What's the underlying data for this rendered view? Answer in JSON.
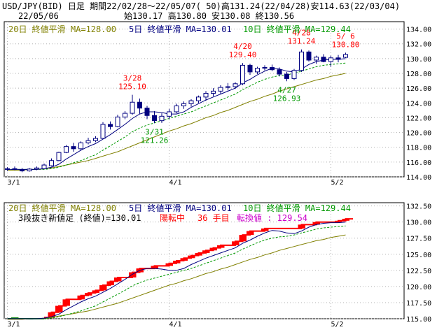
{
  "header": {
    "line1": "USD/JPY(BID) 日足 期間22/02/28～22/05/07( 50)高131.24(22/04/28)安114.63(22/03/04)",
    "date": "22/05/06",
    "ohlc": "始130.17 高130.80 安130.08 終130.56"
  },
  "colors": {
    "up_candle_fill": "#ffffff",
    "down_candle_fill": "#000080",
    "candle_outline": "#000080",
    "ma20": "#808000",
    "ma5": "#000080",
    "ma10": "#009900",
    "kagi_up": "#ff0000",
    "kagi_down": "#008000",
    "grid": "#b0b0b0",
    "annotation_red": "#ff0000",
    "annotation_green": "#009900"
  },
  "chart_data": [
    {
      "type": "candlestick",
      "panel": "upper",
      "legend": [
        {
          "label": "20日 終値平滑 MA=128.00",
          "color": "#808000"
        },
        {
          "label": "5日 終値平滑 MA=130.01",
          "color": "#000080"
        },
        {
          "label": "10日 終値平滑 MA=129.44",
          "color": "#009900"
        }
      ],
      "ylim": [
        114,
        135
      ],
      "y_ticks": [
        114,
        116,
        118,
        120,
        122,
        124,
        126,
        128,
        130,
        132,
        134
      ],
      "y_tick_labels": [
        "114.00",
        "116.00",
        "118.00",
        "120.00",
        "122.00",
        "124.00",
        "126.00",
        "128.00",
        "130.00",
        "132.00",
        "134.00"
      ],
      "x_ticks": [
        {
          "index": 0,
          "label": "3/1"
        },
        {
          "index": 22,
          "label": "4/1"
        },
        {
          "index": 44,
          "label": "5/2"
        }
      ],
      "grid": true,
      "candles": [
        [
          115.0,
          115.3,
          114.8,
          115.1
        ],
        [
          115.1,
          115.4,
          114.9,
          115.0
        ],
        [
          115.0,
          115.2,
          114.63,
          114.8
        ],
        [
          114.8,
          115.2,
          114.7,
          115.05
        ],
        [
          115.05,
          115.4,
          114.9,
          115.2
        ],
        [
          115.1,
          115.8,
          115.0,
          115.6
        ],
        [
          115.5,
          116.5,
          115.4,
          116.2
        ],
        [
          116.2,
          117.4,
          116.1,
          117.3
        ],
        [
          117.3,
          118.3,
          117.2,
          118.1
        ],
        [
          118.1,
          118.6,
          117.4,
          117.8
        ],
        [
          117.8,
          118.8,
          117.6,
          118.6
        ],
        [
          118.6,
          119.3,
          118.4,
          118.9
        ],
        [
          118.9,
          119.5,
          118.7,
          119.2
        ],
        [
          119.2,
          121.4,
          119.1,
          121.1
        ],
        [
          121.1,
          121.5,
          120.4,
          120.8
        ],
        [
          120.8,
          122.4,
          120.7,
          122.1
        ],
        [
          122.1,
          122.9,
          121.8,
          122.6
        ],
        [
          122.6,
          125.1,
          122.4,
          124.1
        ],
        [
          124.1,
          124.6,
          122.5,
          123.3
        ],
        [
          123.3,
          123.6,
          121.8,
          122.3
        ],
        [
          122.3,
          122.9,
          121.26,
          121.6
        ],
        [
          121.6,
          122.6,
          121.3,
          122.2
        ],
        [
          122.2,
          123.2,
          121.8,
          122.8
        ],
        [
          122.8,
          123.9,
          122.6,
          123.6
        ],
        [
          123.6,
          124.2,
          123.2,
          123.9
        ],
        [
          123.9,
          124.5,
          123.5,
          124.3
        ],
        [
          124.3,
          125.0,
          124.0,
          124.8
        ],
        [
          124.8,
          125.6,
          124.3,
          125.3
        ],
        [
          125.3,
          126.0,
          124.9,
          125.6
        ],
        [
          125.6,
          126.4,
          125.2,
          126.1
        ],
        [
          126.1,
          126.7,
          125.7,
          126.2
        ],
        [
          126.2,
          126.8,
          125.9,
          126.6
        ],
        [
          126.6,
          129.4,
          126.4,
          129.1
        ],
        [
          129.1,
          129.3,
          127.8,
          128.2
        ],
        [
          128.2,
          128.9,
          127.9,
          128.7
        ],
        [
          128.7,
          129.1,
          128.4,
          128.8
        ],
        [
          128.8,
          129.2,
          128.3,
          128.5
        ],
        [
          128.5,
          128.8,
          127.6,
          127.9
        ],
        [
          127.9,
          128.2,
          126.93,
          127.3
        ],
        [
          127.3,
          128.6,
          127.1,
          128.4
        ],
        [
          128.4,
          131.24,
          128.2,
          130.9
        ],
        [
          130.9,
          131.1,
          129.6,
          129.8
        ],
        [
          129.8,
          130.4,
          129.3,
          130.2
        ],
        [
          130.2,
          130.6,
          129.5,
          129.6
        ],
        [
          129.6,
          130.4,
          128.9,
          130.1
        ],
        [
          130.1,
          130.5,
          129.5,
          129.9
        ],
        [
          130.17,
          130.8,
          130.08,
          130.56
        ]
      ],
      "candle_fields": [
        "open",
        "high",
        "low",
        "close"
      ],
      "ma20": [
        114.9,
        114.9,
        114.9,
        115.0,
        115.0,
        115.1,
        115.2,
        115.4,
        115.6,
        115.8,
        116.0,
        116.2,
        116.5,
        116.8,
        117.1,
        117.4,
        117.8,
        118.2,
        118.6,
        119.0,
        119.4,
        119.8,
        120.2,
        120.5,
        120.9,
        121.2,
        121.6,
        122.0,
        122.3,
        122.7,
        123.0,
        123.4,
        123.8,
        124.2,
        124.5,
        124.9,
        125.2,
        125.6,
        125.9,
        126.2,
        126.5,
        126.8,
        127.1,
        127.3,
        127.6,
        127.8,
        128.0
      ],
      "ma5": [
        115.0,
        115.0,
        115.0,
        115.0,
        115.0,
        115.1,
        115.3,
        115.7,
        116.4,
        117.0,
        117.6,
        118.1,
        118.5,
        119.1,
        119.7,
        120.4,
        121.1,
        121.9,
        122.5,
        122.8,
        122.8,
        122.7,
        122.5,
        122.5,
        122.8,
        123.4,
        123.9,
        124.4,
        124.8,
        125.2,
        125.6,
        126.0,
        126.7,
        127.2,
        127.8,
        128.3,
        128.7,
        128.6,
        128.3,
        128.2,
        128.6,
        129.2,
        129.6,
        129.8,
        129.9,
        129.9,
        130.0
      ],
      "ma10": [
        115.0,
        115.0,
        115.0,
        115.0,
        115.0,
        115.0,
        115.1,
        115.3,
        115.6,
        115.9,
        116.2,
        116.6,
        117.0,
        117.6,
        118.2,
        118.8,
        119.4,
        120.1,
        120.6,
        121.0,
        121.3,
        121.6,
        121.9,
        122.2,
        122.5,
        122.8,
        123.2,
        123.6,
        124.0,
        124.4,
        124.8,
        125.2,
        125.8,
        126.3,
        126.8,
        127.2,
        127.5,
        127.7,
        127.8,
        128.0,
        128.3,
        128.6,
        128.9,
        129.1,
        129.2,
        129.3,
        129.4
      ],
      "annotations": [
        {
          "date": "3/28",
          "value": "125.10",
          "index": 17,
          "price": 125.1,
          "kind": "high"
        },
        {
          "date": "3/31",
          "value": "121.26",
          "index": 20,
          "price": 121.26,
          "kind": "low"
        },
        {
          "date": "4/20",
          "value": "129.40",
          "index": 32,
          "price": 129.4,
          "kind": "high"
        },
        {
          "date": "4/27",
          "value": "126.93",
          "index": 38,
          "price": 126.93,
          "kind": "low"
        },
        {
          "date": "4/28",
          "value": "131.24",
          "index": 40,
          "price": 131.24,
          "kind": "high"
        },
        {
          "date": "5/ 6",
          "value": "130.80",
          "index": 46,
          "price": 130.8,
          "kind": "high"
        }
      ]
    },
    {
      "type": "kagi",
      "panel": "lower",
      "legend": [
        {
          "label": "20日 終値平滑 MA=128.00",
          "color": "#808000"
        },
        {
          "label": "5日 終値平滑 MA=130.01",
          "color": "#000080"
        },
        {
          "label": "10日 終値平滑 MA=129.44",
          "color": "#009900"
        }
      ],
      "status": [
        {
          "label": "3段抜き新値足 (終値)=130.01",
          "color": "#000000"
        },
        {
          "label": "陽転中",
          "color": "#ff0000"
        },
        {
          "label": "36 手目",
          "color": "#ff0000"
        },
        {
          "label": "転換値 : 129.54",
          "color": "#cc00cc"
        }
      ],
      "ylim": [
        115,
        133
      ],
      "y_ticks": [
        115,
        117.5,
        120,
        122.5,
        125,
        127.5,
        130,
        132.5
      ],
      "y_tick_labels": [
        "115.00",
        "117.50",
        "120.00",
        "122.50",
        "125.00",
        "127.50",
        "130.00",
        "132.50"
      ],
      "x_ticks": [
        {
          "index": 0,
          "label": "3/1"
        },
        {
          "index": 22,
          "label": "4/1"
        },
        {
          "index": 44,
          "label": "5/2"
        }
      ],
      "grid": true,
      "bricks": [
        {
          "index": 1,
          "from": 115.0,
          "to": 115.2,
          "dir": "down"
        },
        {
          "index": 3,
          "from": 115.0,
          "to": 115.1,
          "dir": "down"
        },
        {
          "index": 6,
          "from": 115.2,
          "to": 116.0,
          "dir": "up"
        },
        {
          "index": 7,
          "from": 116.0,
          "to": 117.0,
          "dir": "up"
        },
        {
          "index": 8,
          "from": 117.0,
          "to": 118.0,
          "dir": "up"
        },
        {
          "index": 10,
          "from": 118.0,
          "to": 118.6,
          "dir": "up"
        },
        {
          "index": 11,
          "from": 118.6,
          "to": 119.0,
          "dir": "up"
        },
        {
          "index": 12,
          "from": 119.0,
          "to": 119.4,
          "dir": "up"
        },
        {
          "index": 13,
          "from": 119.4,
          "to": 120.2,
          "dir": "up"
        },
        {
          "index": 14,
          "from": 120.2,
          "to": 120.8,
          "dir": "up"
        },
        {
          "index": 15,
          "from": 120.8,
          "to": 121.4,
          "dir": "up"
        },
        {
          "index": 17,
          "from": 121.4,
          "to": 122.2,
          "dir": "up"
        },
        {
          "index": 18,
          "from": 122.2,
          "to": 122.8,
          "dir": "up"
        },
        {
          "index": 20,
          "from": 122.8,
          "to": 123.2,
          "dir": "up"
        },
        {
          "index": 22,
          "from": 123.2,
          "to": 123.6,
          "dir": "up"
        },
        {
          "index": 23,
          "from": 123.6,
          "to": 124.0,
          "dir": "up"
        },
        {
          "index": 24,
          "from": 124.0,
          "to": 124.4,
          "dir": "up"
        },
        {
          "index": 25,
          "from": 124.4,
          "to": 124.8,
          "dir": "up"
        },
        {
          "index": 26,
          "from": 124.8,
          "to": 125.2,
          "dir": "up"
        },
        {
          "index": 27,
          "from": 125.2,
          "to": 125.6,
          "dir": "up"
        },
        {
          "index": 28,
          "from": 125.6,
          "to": 126.0,
          "dir": "up"
        },
        {
          "index": 29,
          "from": 126.0,
          "to": 126.4,
          "dir": "up"
        },
        {
          "index": 31,
          "from": 126.4,
          "to": 127.0,
          "dir": "up"
        },
        {
          "index": 32,
          "from": 127.0,
          "to": 128.0,
          "dir": "up"
        },
        {
          "index": 33,
          "from": 128.0,
          "to": 128.6,
          "dir": "up"
        },
        {
          "index": 35,
          "from": 128.6,
          "to": 129.0,
          "dir": "up"
        },
        {
          "index": 40,
          "from": 129.0,
          "to": 129.6,
          "dir": "up"
        },
        {
          "index": 42,
          "from": 129.6,
          "to": 130.0,
          "dir": "up"
        },
        {
          "index": 45,
          "from": 130.0,
          "to": 130.2,
          "dir": "up"
        },
        {
          "index": 46,
          "from": 130.2,
          "to": 130.5,
          "dir": "up"
        }
      ]
    }
  ]
}
